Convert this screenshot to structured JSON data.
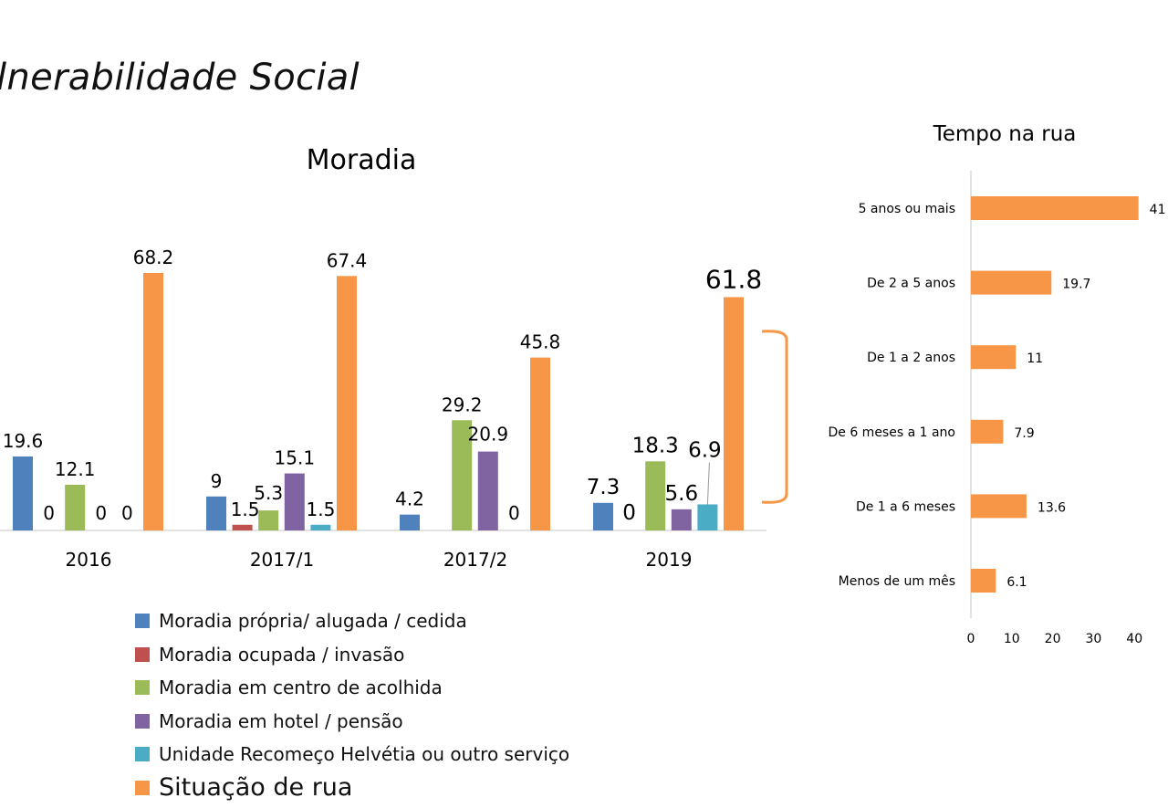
{
  "slide": {
    "title": "lnerabilidade Social"
  },
  "chart_data": [
    {
      "type": "bar",
      "title": "Moradia",
      "categories": [
        "2016",
        "2017/1",
        "2017/2",
        "2019"
      ],
      "series": [
        {
          "name": "Moradia própria/ alugada / cedida",
          "color": "#4f81bd",
          "values": [
            19.6,
            9,
            4.2,
            7.3
          ]
        },
        {
          "name": "Moradia ocupada / invasão",
          "color": "#c0504d",
          "values": [
            0,
            1.5,
            null,
            0
          ]
        },
        {
          "name": "Moradia em centro de acolhida",
          "color": "#9bbb59",
          "values": [
            12.1,
            5.3,
            29.2,
            18.3
          ]
        },
        {
          "name": "Moradia em hotel / pensão",
          "color": "#8064a2",
          "values": [
            0,
            15.1,
            20.9,
            5.6
          ]
        },
        {
          "name": "Unidade Recomeço Helvétia ou outro serviço",
          "color": "#4bacc6",
          "values": [
            0,
            1.5,
            0,
            6.9
          ]
        },
        {
          "name": "Situação de rua",
          "color": "#f79646",
          "values": [
            68.2,
            67.4,
            45.8,
            61.8
          ]
        }
      ],
      "legend_position": "bottom",
      "grid": false
    },
    {
      "type": "bar",
      "orientation": "horizontal",
      "title": "Tempo na rua",
      "categories": [
        "5 anos ou mais",
        "De 2 a 5 anos",
        "De 1 a 2 anos",
        "De 6 meses a 1 ano",
        "De 1 a 6 meses",
        "Menos de um mês"
      ],
      "values": [
        41,
        19.7,
        11,
        7.9,
        13.6,
        6.1
      ],
      "color": "#f79646",
      "xlim": [
        0,
        40
      ],
      "xticks": [
        "0",
        "10",
        "20",
        "30",
        "40"
      ],
      "grid": false
    }
  ]
}
